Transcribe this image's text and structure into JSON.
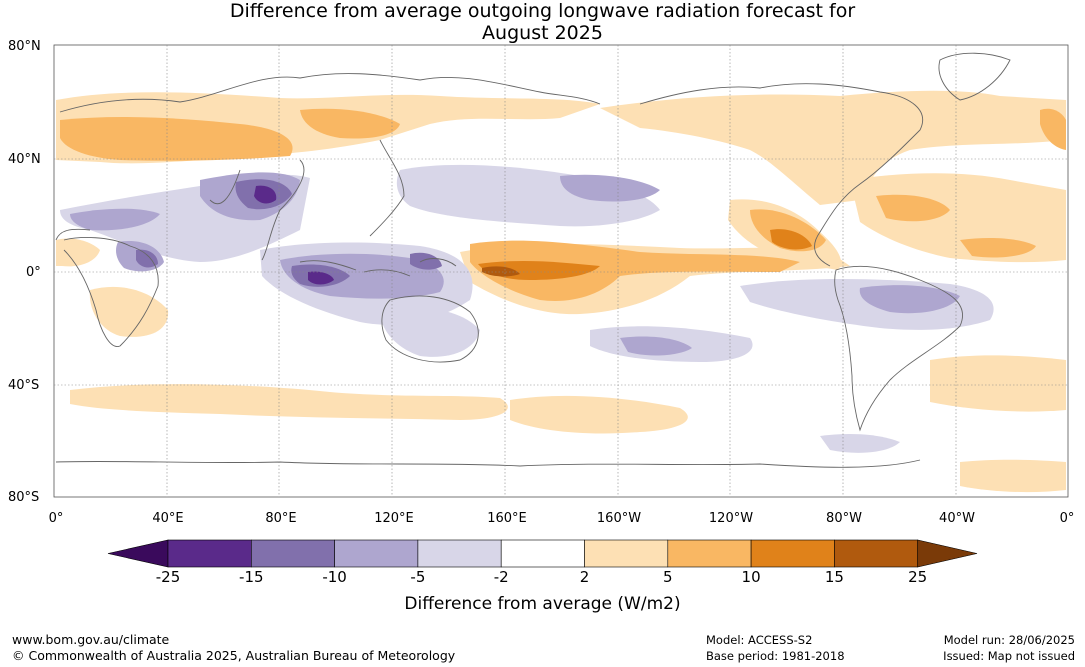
{
  "title_line1": "Difference from average outgoing longwave radiation forecast for",
  "title_line2": "August 2025",
  "lat_labels": [
    "80°N",
    "40°N",
    "0°",
    "40°S",
    "80°S"
  ],
  "lon_labels": [
    "0°",
    "40°E",
    "80°E",
    "120°E",
    "160°E",
    "160°W",
    "120°W",
    "80°W",
    "40°W",
    "0°"
  ],
  "colorbar": {
    "title": "Difference from average (W/m2)",
    "ticks": [
      "-25",
      "-15",
      "-10",
      "-5",
      "-2",
      "2",
      "5",
      "10",
      "15",
      "25"
    ],
    "colors": [
      "#3a0a5c",
      "#5a2a8a",
      "#8170ac",
      "#aea6cf",
      "#d8d6e8",
      "#ffffff",
      "#fde0b4",
      "#f9b763",
      "#e0821a",
      "#b05a0e",
      "#7a3a08"
    ]
  },
  "footer": {
    "url": "www.bom.gov.au/climate",
    "copyright": "© Commonwealth of Australia 2025, Australian Bureau of Meteorology",
    "model": "Model: ACCESS-S2",
    "base_period": "Base period: 1981-2018",
    "model_run": "Model run: 28/06/2025",
    "issued": "Issued: Map not issued"
  },
  "colors": {
    "neg_light": "#d8d6e8",
    "neg_mid": "#aea6cf",
    "neg_strong": "#8170ac",
    "neg_deep": "#5a2a8a",
    "pos_light": "#fde0b4",
    "pos_mid": "#f9b763",
    "pos_strong": "#e0821a",
    "pos_deep": "#b05a0e"
  }
}
